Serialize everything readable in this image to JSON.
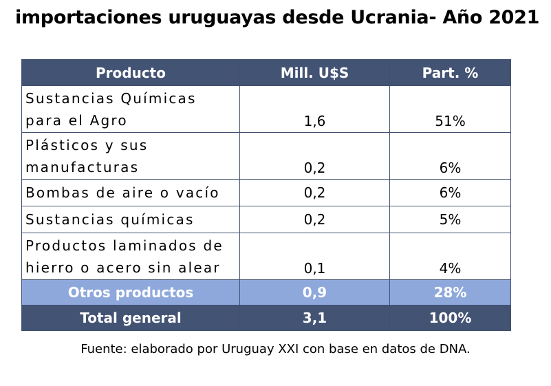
{
  "title": "importaciones uruguayas desde  Ucrania- Año 2021",
  "table": {
    "headers": [
      "Producto",
      "Mill. U$S",
      "Part. %"
    ],
    "rows": [
      {
        "producto": "Sustancias Químicas para el Agro",
        "mill": "1,6",
        "part": "51%"
      },
      {
        "producto": "Plásticos y sus manufacturas",
        "mill": "0,2",
        "part": "6%"
      },
      {
        "producto": "Bombas de aire o vacío",
        "mill": "0,2",
        "part": "6%"
      },
      {
        "producto": "Sustancias químicas",
        "mill": "0,2",
        "part": "5%"
      },
      {
        "producto": "Productos laminados de hierro o acero sin alear",
        "mill": "0,1",
        "part": "4%"
      }
    ],
    "otros": {
      "producto": "Otros productos",
      "mill": "0,9",
      "part": "28%"
    },
    "total": {
      "producto": "Total general",
      "mill": "3,1",
      "part": "100%"
    }
  },
  "source": "Fuente: elaborado por Uruguay XXI con base en datos de DNA.",
  "colors": {
    "header_bg": "#435374",
    "otros_bg": "#8ea8dc",
    "border": "#41506e"
  }
}
